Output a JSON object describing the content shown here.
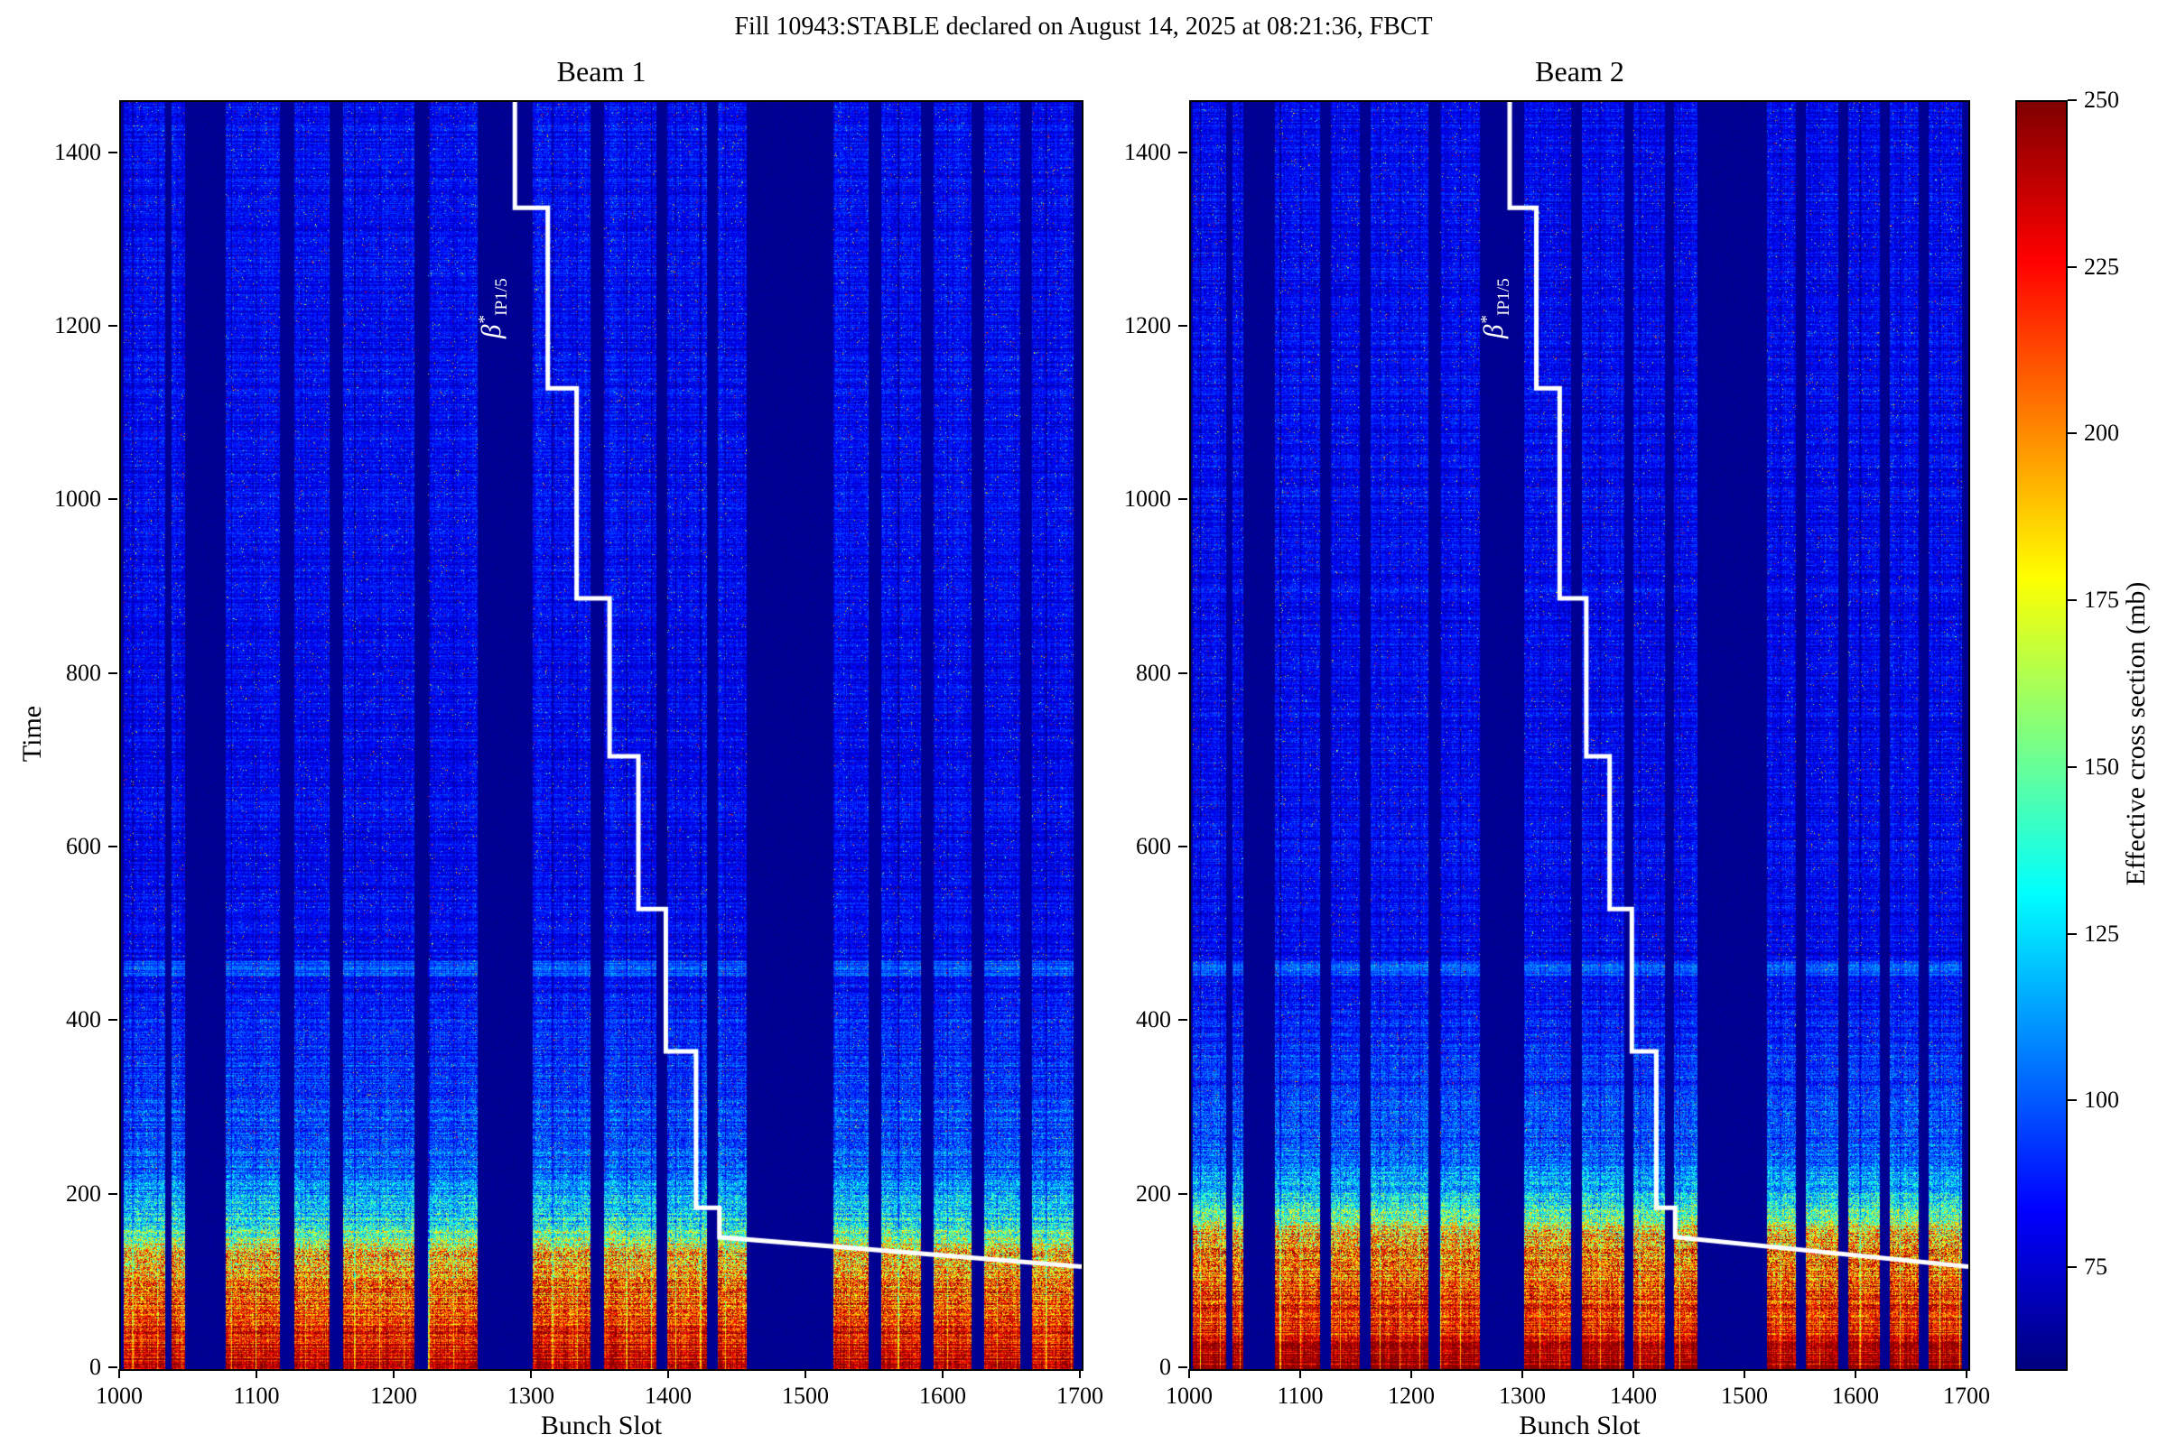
{
  "figure": {
    "title": "Fill 10943:STABLE declared on August 14, 2025 at 08:21:36, FBCT"
  },
  "chart_data": {
    "type": "heatmap",
    "xlabel": "Bunch Slot",
    "ylabel": "Time",
    "x_range": [
      1000,
      1700
    ],
    "y_range": [
      0,
      1460
    ],
    "x_ticks": [
      1000,
      1100,
      1200,
      1300,
      1400,
      1500,
      1600,
      1700
    ],
    "y_ticks": [
      0,
      200,
      400,
      600,
      800,
      1000,
      1200,
      1400
    ],
    "colorbar": {
      "label": "Effective cross section (mb)",
      "vmin": 60,
      "vmax": 250,
      "colormap": "jet",
      "ticks": [
        75,
        100,
        125,
        150,
        175,
        200,
        225,
        250
      ]
    },
    "panels": [
      {
        "title": "Beam 1",
        "hot_top": 130,
        "bands": [
          [
            0,
            130,
            242,
            20
          ],
          [
            130,
            165,
            196,
            55
          ],
          [
            165,
            230,
            134,
            38
          ],
          [
            230,
            470,
            102,
            22
          ],
          [
            470,
            1460,
            83,
            12
          ]
        ]
      },
      {
        "title": "Beam 2",
        "hot_top": 150,
        "bands": [
          [
            0,
            150,
            244,
            18
          ],
          [
            150,
            185,
            197,
            55
          ],
          [
            185,
            245,
            134,
            38
          ],
          [
            245,
            470,
            102,
            22
          ],
          [
            470,
            1460,
            83,
            12
          ]
        ]
      }
    ],
    "bunch_trains": [
      [
        1002,
        1032
      ],
      [
        1037,
        1047
      ],
      [
        1076,
        1116
      ],
      [
        1126,
        1152
      ],
      [
        1162,
        1214
      ],
      [
        1224,
        1260
      ],
      [
        1300,
        1342
      ],
      [
        1352,
        1390
      ],
      [
        1398,
        1427
      ],
      [
        1435,
        1456
      ],
      [
        1519,
        1545
      ],
      [
        1554,
        1583
      ],
      [
        1592,
        1620
      ],
      [
        1629,
        1655
      ],
      [
        1664,
        1694
      ]
    ],
    "beta_star_line": {
      "label_base": "β",
      "label_sup": "*",
      "label_sub": "IP1/5",
      "points": [
        [
          1287,
          1460
        ],
        [
          1287,
          1338
        ],
        [
          1311,
          1338
        ],
        [
          1311,
          1130
        ],
        [
          1332,
          1130
        ],
        [
          1332,
          888
        ],
        [
          1356,
          888
        ],
        [
          1356,
          706
        ],
        [
          1377,
          706
        ],
        [
          1377,
          530
        ],
        [
          1397,
          530
        ],
        [
          1397,
          366
        ],
        [
          1419,
          366
        ],
        [
          1419,
          186
        ],
        [
          1436,
          186
        ],
        [
          1436,
          152
        ],
        [
          1700,
          118
        ]
      ]
    }
  }
}
